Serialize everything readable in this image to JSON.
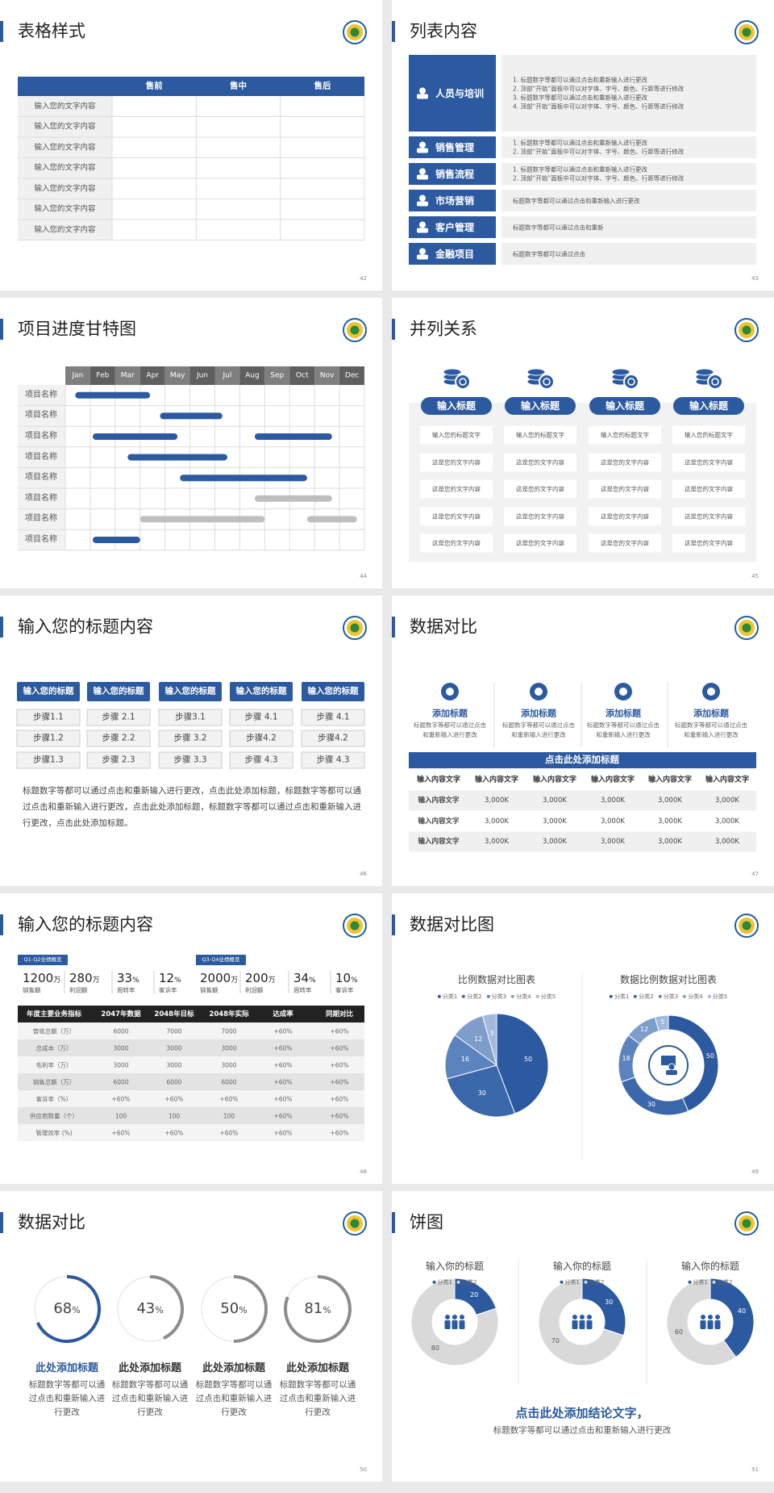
{
  "slides": [
    {
      "title": "表格样式",
      "page": "42",
      "table": {
        "header": [
          "售前",
          "售中",
          "售后"
        ],
        "rows": [
          "输入您的文字内容",
          "输入您的文字内容",
          "输入您的文字内容",
          "输入您的文字内容",
          "输入您的文字内容",
          "输入您的文字内容",
          "输入您的文字内容"
        ]
      }
    },
    {
      "title": "列表内容",
      "page": "43",
      "items": [
        {
          "label": "人员与培训",
          "lines": [
            "1. 标题数字等都可以通过点击和重新输入进行更改",
            "2. 顶部“开始”面板中可以对字体、字号、颜色、行距等进行修改",
            "3. 标题数字等都可以通过点击和重新输入进行更改",
            "4. 顶部“开始”面板中可以对字体、字号、颜色、行距等进行修改"
          ]
        },
        {
          "label": "销售管理",
          "lines": [
            "1. 标题数字等都可以通过点击和重新输入进行更改",
            "2. 顶部“开始”面板中可以对字体、字号、颜色、行距等进行修改"
          ]
        },
        {
          "label": "销售流程",
          "lines": [
            "1. 标题数字等都可以通过点击和重新输入进行更改",
            "2. 顶部“开始”面板中可以对字体、字号、颜色、行距等进行修改"
          ]
        },
        {
          "label": "市场营销",
          "lines": [
            "标题数字等都可以通过点击和重新输入进行更改"
          ]
        },
        {
          "label": "客户管理",
          "lines": [
            "标题数字等都可以通过点击和重新"
          ]
        },
        {
          "label": "金融项目",
          "lines": [
            "标题数字等都可以通过点击"
          ]
        }
      ]
    },
    {
      "title": "项目进度甘特图",
      "page": "44",
      "months": [
        "Jan",
        "Feb",
        "Mar",
        "Apr",
        "May",
        "Jun",
        "Jul",
        "Aug",
        "Sep",
        "Oct",
        "Nov",
        "Dec"
      ],
      "tasks": [
        {
          "name": "项目名称",
          "bars": [
            {
              "start": 0.4,
              "end": 3.4,
              "color": "#2c5aa0"
            }
          ]
        },
        {
          "name": "项目名称",
          "bars": [
            {
              "start": 3.8,
              "end": 6.3,
              "color": "#2c5aa0"
            }
          ]
        },
        {
          "name": "项目名称",
          "bars": [
            {
              "start": 1.1,
              "end": 4.5,
              "color": "#2c5aa0"
            },
            {
              "start": 7.6,
              "end": 10.7,
              "color": "#2c5aa0"
            }
          ]
        },
        {
          "name": "项目名称",
          "bars": [
            {
              "start": 2.5,
              "end": 6.5,
              "color": "#2c5aa0"
            }
          ]
        },
        {
          "name": "项目名称",
          "bars": [
            {
              "start": 4.6,
              "end": 9.7,
              "color": "#2c5aa0"
            }
          ]
        },
        {
          "name": "项目名称",
          "bars": [
            {
              "start": 7.6,
              "end": 10.7,
              "color": "#bfbfbf"
            }
          ]
        },
        {
          "name": "项目名称",
          "bars": [
            {
              "start": 3.0,
              "end": 8.0,
              "color": "#bfbfbf"
            },
            {
              "start": 9.7,
              "end": 11.7,
              "color": "#bfbfbf"
            }
          ]
        },
        {
          "name": "项目名称",
          "bars": [
            {
              "start": 1.1,
              "end": 3.0,
              "color": "#2c5aa0"
            }
          ]
        }
      ]
    },
    {
      "title": "并列关系",
      "page": "45",
      "columns": [
        {
          "heading": "输入标题",
          "cells": [
            "输入您的标题文字",
            "这是您的文字内容",
            "这是您的文字内容",
            "这是您的文字内容",
            "这是您的文字内容"
          ]
        },
        {
          "heading": "输入标题",
          "cells": [
            "输入您的标题文字",
            "这是您的文字内容",
            "这是您的文字内容",
            "这是您的文字内容",
            "这是您的文字内容"
          ]
        },
        {
          "heading": "输入标题",
          "cells": [
            "输入您的标题文字",
            "这是您的文字内容",
            "这是您的文字内容",
            "这是您的文字内容",
            "这是您的文字内容"
          ]
        },
        {
          "heading": "输入标题",
          "cells": [
            "输入您的标题文字",
            "这是您的文字内容",
            "这是您的文字内容",
            "这是您的文字内容",
            "这是您的文字内容"
          ]
        }
      ]
    },
    {
      "title": "输入您的标题内容",
      "page": "46",
      "columns": [
        {
          "heading": "输入您的标题",
          "steps": [
            "步骤1.1",
            "步骤1.2",
            "步骤1.3"
          ]
        },
        {
          "heading": "输入您的标题",
          "steps": [
            "步骤 2.1",
            "步骤 2.2",
            "步骤 2.3"
          ]
        },
        {
          "heading": "输入您的标题",
          "steps": [
            "步骤3.1",
            "步骤 3.2",
            "步骤 3.3"
          ]
        },
        {
          "heading": "输入您的标题",
          "steps": [
            "步骤 4.1",
            "步骤4.2",
            "步骤 4.3"
          ]
        },
        {
          "heading": "输入您的标题",
          "steps": [
            "步骤 4.1",
            "步骤4.2",
            "步骤 4.3"
          ]
        }
      ],
      "paragraph": "标题数字等都可以通过点击和重新输入进行更改，点击此处添加标题，标题数字等都可以通过点击和重新输入进行更改，点击此处添加标题，标题数字等都可以通过点击和重新输入进行更改，点击此处添加标题。"
    },
    {
      "title": "数据对比",
      "page": "47",
      "cards": [
        {
          "heading": "添加标题",
          "text": "标题数字等都可以通过点击和重新输入进行更改"
        },
        {
          "heading": "添加标题",
          "text": "标题数字等都可以通过点击和重新输入进行更改"
        },
        {
          "heading": "添加标题",
          "text": "标题数字等都可以通过点击和重新输入进行更改"
        },
        {
          "heading": "添加标题",
          "text": "标题数字等都可以通过点击和重新输入进行更改"
        }
      ],
      "table": {
        "title": "点击此处添加标题",
        "header": [
          "输入内容文字",
          "输入内容文字",
          "输入内容文字",
          "输入内容文字",
          "输入内容文字",
          "输入内容文字"
        ],
        "rows": [
          [
            "输入内容文字",
            "3,000K",
            "3,000K",
            "3,000K",
            "3,000K",
            "3,000K"
          ],
          [
            "输入内容文字",
            "3,000K",
            "3,000K",
            "3,000K",
            "3,000K",
            "3,000K"
          ],
          [
            "输入内容文字",
            "3,000K",
            "3,000K",
            "3,000K",
            "3,000K",
            "3,000K"
          ]
        ]
      }
    },
    {
      "title": "输入您的标题内容",
      "page": "48",
      "groups": [
        {
          "label": "Q1-Q2业绩概览",
          "stats": [
            {
              "value": 1200,
              "unit": "万",
              "label": "销售额"
            },
            {
              "value": 280,
              "unit": "万",
              "label": "利润额"
            },
            {
              "value": 33,
              "unit": "%",
              "label": "周转率"
            },
            {
              "value": 12,
              "unit": "%",
              "label": "客诉率"
            }
          ]
        },
        {
          "label": "Q3-Q4业绩概览",
          "stats": [
            {
              "value": 2000,
              "unit": "万",
              "label": "销售额"
            },
            {
              "value": 200,
              "unit": "万",
              "label": "利润额"
            },
            {
              "value": 34,
              "unit": "%",
              "label": "周转率"
            },
            {
              "value": 10,
              "unit": "%",
              "label": "客诉率"
            }
          ]
        }
      ],
      "table": {
        "header": [
          "年度主要业务指标",
          "2047年数据",
          "2048年目标",
          "2048年实际",
          "达成率",
          "同期对比"
        ],
        "rows": [
          [
            "营收总额（万）",
            "6000",
            "7000",
            "7000",
            "+60%",
            "+60%"
          ],
          [
            "总成本（万）",
            "3000",
            "3000",
            "3000",
            "+60%",
            "+60%"
          ],
          [
            "毛利率（万）",
            "3000",
            "3000",
            "3000",
            "+60%",
            "+60%"
          ],
          [
            "销售总额（万）",
            "6000",
            "6000",
            "6000",
            "+60%",
            "+60%"
          ],
          [
            "客诉率（%）",
            "+60%",
            "+60%",
            "+60%",
            "+60%",
            "+60%"
          ],
          [
            "供应商数量（个）",
            "100",
            "100",
            "100",
            "+60%",
            "+60%"
          ],
          [
            "管理效率 (%)",
            "+60%",
            "+60%",
            "+60%",
            "+60%",
            "+60%"
          ]
        ]
      }
    },
    {
      "title": "数据对比图",
      "page": "49",
      "charts": [
        {
          "title": "比例数据对比图表",
          "donut": false,
          "categories": [
            "分类1",
            "分类2",
            "分类3",
            "分类4",
            "分类5"
          ],
          "values": [
            50,
            30,
            16,
            12,
            5
          ],
          "colors": [
            "#2c5aa0",
            "#3b67ab",
            "#5b83bd",
            "#7e9dcb",
            "#a3b9dc"
          ]
        },
        {
          "title": "数据比例数据对比图表",
          "donut": true,
          "categories": [
            "分类1",
            "分类2",
            "分类3",
            "分类4",
            "分类5"
          ],
          "values": [
            50,
            30,
            18,
            12,
            5
          ],
          "colors": [
            "#2c5aa0",
            "#3b67ab",
            "#5b83bd",
            "#7e9dcb",
            "#a3b9dc"
          ]
        }
      ]
    },
    {
      "title": "数据对比",
      "page": "50",
      "rings": [
        {
          "value": 68,
          "unit": "%",
          "color": "#2c5aa0",
          "heading": "此处添加标题",
          "text": "标题数字等都可以通过点击和重新输入进行更改"
        },
        {
          "value": 43,
          "unit": "%",
          "color": "#8c8c8c",
          "heading": "此处添加标题",
          "text": "标题数字等都可以通过点击和重新输入进行更改"
        },
        {
          "value": 50,
          "unit": "%",
          "color": "#8c8c8c",
          "heading": "此处添加标题",
          "text": "标题数字等都可以通过点击和重新输入进行更改"
        },
        {
          "value": 81,
          "unit": "%",
          "color": "#8c8c8c",
          "heading": "此处添加标题",
          "text": "标题数字等都可以通过点击和重新输入进行更改"
        }
      ]
    },
    {
      "title": "饼图",
      "page": "51",
      "charts": [
        {
          "title": "输入你的标题",
          "donut": true,
          "categories": [
            "分类1",
            "分类2"
          ],
          "values": [
            20,
            80
          ],
          "colors": [
            "#2c5aa0",
            "#d9d9d9"
          ]
        },
        {
          "title": "输入你的标题",
          "donut": true,
          "categories": [
            "分类1",
            "分类2"
          ],
          "values": [
            30,
            70
          ],
          "colors": [
            "#2c5aa0",
            "#d9d9d9"
          ]
        },
        {
          "title": "输入你的标题",
          "donut": true,
          "categories": [
            "分类1",
            "分类2"
          ],
          "values": [
            40,
            60
          ],
          "colors": [
            "#2c5aa0",
            "#d9d9d9"
          ]
        }
      ],
      "conclusion": "点击此处添加结论文字，",
      "note": "标题数字等都可以通过点击和重新输入进行更改"
    }
  ]
}
